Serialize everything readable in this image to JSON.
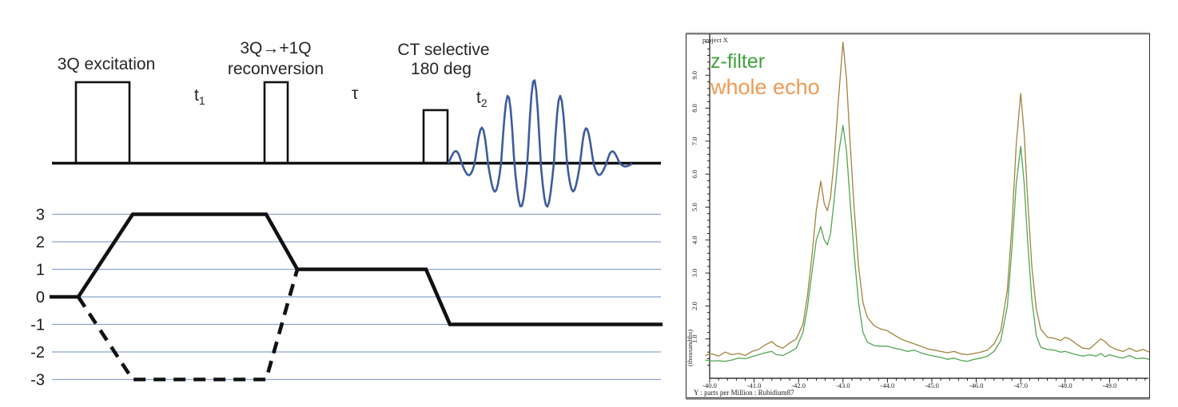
{
  "pulse_sequence": {
    "excitation_label": "3Q excitation",
    "reconversion_label_line1": "3Q→+1Q",
    "reconversion_label_line2": "reconversion",
    "ct_label_line1": "CT selective",
    "ct_label_line2": "180 deg",
    "t1": {
      "base": "t",
      "sub": "1"
    },
    "tau": "τ",
    "t2": {
      "base": "t",
      "sub": "2"
    },
    "signal_color": "#3d5c9d"
  },
  "coherence_pathway": {
    "levels": [
      3,
      2,
      1,
      0,
      -1,
      -2,
      -3
    ],
    "level_labels": [
      "3",
      "2",
      "1",
      "0",
      "-1",
      "-2",
      "-3"
    ],
    "grid_color": "#8aa3d1",
    "path_color": "#111111"
  },
  "spectrum": {
    "corner_label": "project X",
    "legend": [
      {
        "label": "z-filter",
        "text_color": "#3fa33f"
      },
      {
        "label": "whole echo",
        "text_color": "#f09a52"
      }
    ],
    "y_axis": {
      "unit_label": "(thousandths)",
      "tick_labels": [
        "1.0",
        "2.0",
        "3.0",
        "4.0",
        "5.0",
        "6.0",
        "7.0",
        "8.0",
        "9.0"
      ]
    },
    "x_axis": {
      "tick_labels": [
        "-40.0",
        "-41.0",
        "-42.0",
        "-43.0",
        "-44.0",
        "-45.0",
        "-46.0",
        "-47.0",
        "-48.0",
        "-49.0"
      ],
      "title": "Y : parts per Million : Rubidium87"
    }
  },
  "chart_data": {
    "type": "line",
    "title": "project X",
    "xlabel": "Y : parts per Million : Rubidium87",
    "ylabel": "(thousandths)",
    "x_axis_reversed": true,
    "xlim": [
      -39.9,
      -49.9
    ],
    "ylim": [
      0,
      10.3
    ],
    "x_tick_step": 1.0,
    "y_tick_step": 1.0,
    "grid": false,
    "legend_position": "top-left",
    "series": [
      {
        "name": "whole echo",
        "color": "#a2823e",
        "points": [
          [
            -39.9,
            0.5
          ],
          [
            -40.05,
            0.55
          ],
          [
            -40.2,
            0.48
          ],
          [
            -40.35,
            0.6
          ],
          [
            -40.5,
            0.52
          ],
          [
            -40.65,
            0.56
          ],
          [
            -40.8,
            0.5
          ],
          [
            -40.95,
            0.62
          ],
          [
            -41.1,
            0.68
          ],
          [
            -41.25,
            0.82
          ],
          [
            -41.4,
            0.92
          ],
          [
            -41.5,
            0.8
          ],
          [
            -41.65,
            0.72
          ],
          [
            -41.8,
            0.88
          ],
          [
            -41.95,
            1.0
          ],
          [
            -42.1,
            1.45
          ],
          [
            -42.2,
            2.3
          ],
          [
            -42.3,
            3.5
          ],
          [
            -42.4,
            4.9
          ],
          [
            -42.5,
            5.79
          ],
          [
            -42.58,
            5.1
          ],
          [
            -42.65,
            4.89
          ],
          [
            -42.72,
            5.3
          ],
          [
            -42.8,
            6.4
          ],
          [
            -42.9,
            8.3
          ],
          [
            -43.0,
            10.0
          ],
          [
            -43.08,
            8.9
          ],
          [
            -43.15,
            7.2
          ],
          [
            -43.25,
            5.0
          ],
          [
            -43.35,
            3.2
          ],
          [
            -43.45,
            2.1
          ],
          [
            -43.55,
            1.65
          ],
          [
            -43.7,
            1.4
          ],
          [
            -43.85,
            1.3
          ],
          [
            -44.0,
            1.25
          ],
          [
            -44.15,
            1.12
          ],
          [
            -44.3,
            1.0
          ],
          [
            -44.45,
            0.92
          ],
          [
            -44.6,
            0.85
          ],
          [
            -44.75,
            0.78
          ],
          [
            -44.9,
            0.7
          ],
          [
            -45.05,
            0.66
          ],
          [
            -45.2,
            0.62
          ],
          [
            -45.35,
            0.58
          ],
          [
            -45.5,
            0.62
          ],
          [
            -45.65,
            0.55
          ],
          [
            -45.8,
            0.52
          ],
          [
            -45.95,
            0.56
          ],
          [
            -46.1,
            0.6
          ],
          [
            -46.25,
            0.66
          ],
          [
            -46.4,
            0.85
          ],
          [
            -46.55,
            1.25
          ],
          [
            -46.7,
            2.5
          ],
          [
            -46.8,
            4.4
          ],
          [
            -46.9,
            6.9
          ],
          [
            -47.0,
            8.45
          ],
          [
            -47.08,
            7.2
          ],
          [
            -47.15,
            5.4
          ],
          [
            -47.25,
            3.2
          ],
          [
            -47.35,
            1.9
          ],
          [
            -47.45,
            1.3
          ],
          [
            -47.6,
            1.05
          ],
          [
            -47.75,
            1.02
          ],
          [
            -47.9,
            0.95
          ],
          [
            -48.0,
            1.05
          ],
          [
            -48.1,
            1.0
          ],
          [
            -48.25,
            0.85
          ],
          [
            -48.4,
            0.72
          ],
          [
            -48.55,
            0.7
          ],
          [
            -48.7,
            0.88
          ],
          [
            -48.8,
            1.0
          ],
          [
            -48.9,
            0.92
          ],
          [
            -49.0,
            0.78
          ],
          [
            -49.15,
            0.68
          ],
          [
            -49.3,
            0.62
          ],
          [
            -49.45,
            0.72
          ],
          [
            -49.6,
            0.62
          ],
          [
            -49.75,
            0.68
          ],
          [
            -49.9,
            0.6
          ]
        ]
      },
      {
        "name": "z-filter",
        "color": "#53a653",
        "points": [
          [
            -39.9,
            0.36
          ],
          [
            -40.05,
            0.33
          ],
          [
            -40.2,
            0.34
          ],
          [
            -40.35,
            0.32
          ],
          [
            -40.5,
            0.36
          ],
          [
            -40.65,
            0.42
          ],
          [
            -40.8,
            0.4
          ],
          [
            -40.95,
            0.46
          ],
          [
            -41.1,
            0.52
          ],
          [
            -41.25,
            0.58
          ],
          [
            -41.4,
            0.62
          ],
          [
            -41.5,
            0.52
          ],
          [
            -41.65,
            0.5
          ],
          [
            -41.8,
            0.6
          ],
          [
            -41.95,
            0.72
          ],
          [
            -42.1,
            1.2
          ],
          [
            -42.2,
            1.95
          ],
          [
            -42.3,
            3.0
          ],
          [
            -42.4,
            4.0
          ],
          [
            -42.5,
            4.41
          ],
          [
            -42.58,
            4.0
          ],
          [
            -42.65,
            3.85
          ],
          [
            -42.72,
            4.2
          ],
          [
            -42.8,
            5.2
          ],
          [
            -42.9,
            6.6
          ],
          [
            -43.0,
            7.48
          ],
          [
            -43.08,
            6.7
          ],
          [
            -43.15,
            5.4
          ],
          [
            -43.25,
            3.6
          ],
          [
            -43.35,
            2.1
          ],
          [
            -43.45,
            1.2
          ],
          [
            -43.55,
            0.9
          ],
          [
            -43.7,
            0.8
          ],
          [
            -43.85,
            0.78
          ],
          [
            -44.0,
            0.78
          ],
          [
            -44.15,
            0.72
          ],
          [
            -44.3,
            0.68
          ],
          [
            -44.45,
            0.62
          ],
          [
            -44.6,
            0.66
          ],
          [
            -44.75,
            0.58
          ],
          [
            -44.9,
            0.52
          ],
          [
            -45.05,
            0.48
          ],
          [
            -45.2,
            0.44
          ],
          [
            -45.35,
            0.38
          ],
          [
            -45.5,
            0.42
          ],
          [
            -45.65,
            0.35
          ],
          [
            -45.8,
            0.32
          ],
          [
            -45.95,
            0.38
          ],
          [
            -46.1,
            0.42
          ],
          [
            -46.25,
            0.48
          ],
          [
            -46.4,
            0.62
          ],
          [
            -46.55,
            0.95
          ],
          [
            -46.7,
            2.0
          ],
          [
            -46.8,
            3.7
          ],
          [
            -46.9,
            5.7
          ],
          [
            -47.0,
            6.85
          ],
          [
            -47.08,
            5.7
          ],
          [
            -47.15,
            4.1
          ],
          [
            -47.25,
            2.2
          ],
          [
            -47.35,
            1.1
          ],
          [
            -47.45,
            0.75
          ],
          [
            -47.6,
            0.68
          ],
          [
            -47.75,
            0.66
          ],
          [
            -47.9,
            0.6
          ],
          [
            -48.0,
            0.62
          ],
          [
            -48.1,
            0.58
          ],
          [
            -48.25,
            0.52
          ],
          [
            -48.4,
            0.48
          ],
          [
            -48.55,
            0.52
          ],
          [
            -48.7,
            0.48
          ],
          [
            -48.8,
            0.56
          ],
          [
            -48.9,
            0.46
          ],
          [
            -49.0,
            0.52
          ],
          [
            -49.15,
            0.46
          ],
          [
            -49.3,
            0.42
          ],
          [
            -49.45,
            0.5
          ],
          [
            -49.6,
            0.4
          ],
          [
            -49.75,
            0.42
          ],
          [
            -49.9,
            0.38
          ]
        ]
      }
    ]
  }
}
